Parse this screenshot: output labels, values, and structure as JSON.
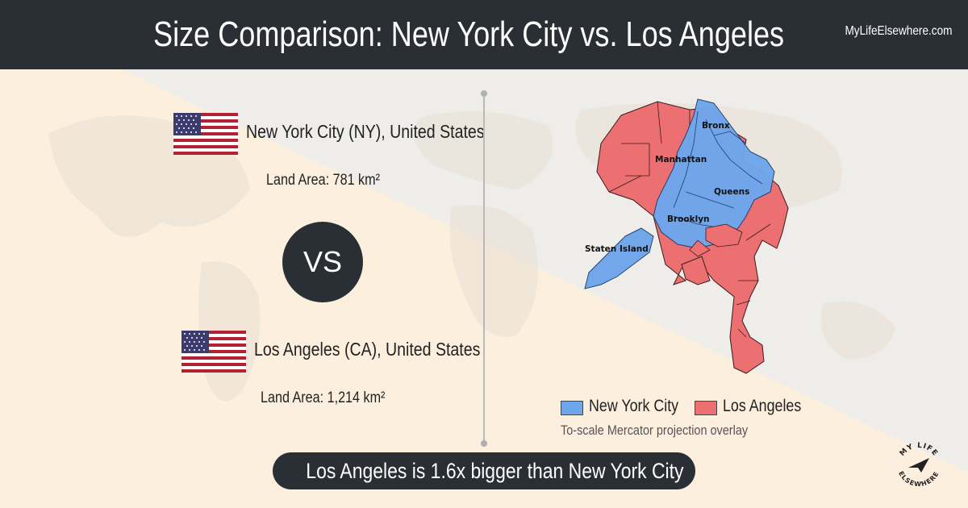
{
  "header": {
    "title": "Size Comparison: New York City vs. Los Angeles",
    "site": "MyLifeElsewhere.com"
  },
  "city1": {
    "name": "New York City (NY), United States",
    "land_area": "Land Area: 781 km²",
    "flag_icon": "us-flag-icon"
  },
  "city2": {
    "name": "Los Angeles (CA), United States",
    "land_area": "Land Area: 1,214 km²",
    "flag_icon": "us-flag-icon"
  },
  "vs_label": "VS",
  "map": {
    "labels": {
      "bronx": "Bronx",
      "manhattan": "Manhattan",
      "queens": "Queens",
      "brooklyn": "Brooklyn",
      "staten_island": "Staten Island"
    }
  },
  "legend": {
    "items": [
      {
        "label": "New York City",
        "color": "#6ea6ec"
      },
      {
        "label": "Los Angeles",
        "color": "#ec6f72"
      }
    ],
    "note": "To-scale Mercator projection overlay"
  },
  "summary": "Los Angeles is 1.6x bigger than New York City",
  "logo": {
    "text_top": "MY LIFE",
    "text_bottom": "ELSEWHERE",
    "icon": "paper-plane-icon"
  },
  "colors": {
    "header_bg": "#2a2f35",
    "nyc": "#6ea6ec",
    "la": "#ec6f72"
  }
}
